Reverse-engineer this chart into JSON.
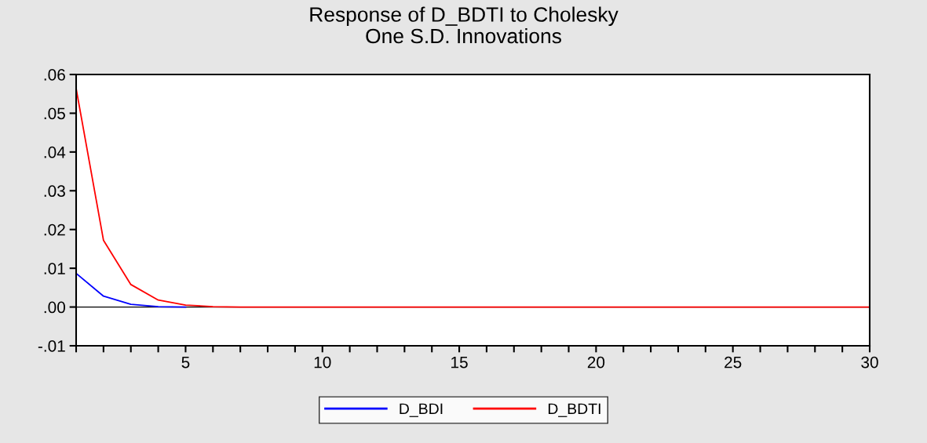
{
  "chart_data": {
    "type": "line",
    "title": "Response of D_BDTI to Cholesky\nOne S.D. Innovations",
    "x": [
      1,
      2,
      3,
      4,
      5,
      6,
      7,
      8,
      9,
      10,
      11,
      12,
      13,
      14,
      15,
      16,
      17,
      18,
      19,
      20,
      21,
      22,
      23,
      24,
      25,
      26,
      27,
      28,
      29,
      30
    ],
    "series": [
      {
        "name": "D_BDI",
        "color": "#0000ff",
        "values": [
          0.0087,
          0.0028,
          0.0007,
          0.0001,
          0,
          null,
          null,
          null,
          null,
          null,
          null,
          null,
          null,
          null,
          null,
          null,
          null,
          null,
          null,
          null,
          null,
          null,
          null,
          null,
          null,
          null,
          null,
          null,
          null,
          null
        ]
      },
      {
        "name": "D_BDTI",
        "color": "#ff0000",
        "values": [
          0.0564,
          0.0172,
          0.0058,
          0.0018,
          0.0005,
          0.0001,
          0,
          0,
          0,
          0,
          0,
          0,
          0,
          0,
          0,
          0,
          0,
          0,
          0,
          0,
          0,
          0,
          0,
          0,
          0,
          0,
          0,
          0,
          0,
          0
        ]
      }
    ],
    "xlim": [
      1,
      30
    ],
    "xticks": [
      {
        "value": 1,
        "label": null
      },
      {
        "value": 2,
        "label": null
      },
      {
        "value": 3,
        "label": null
      },
      {
        "value": 4,
        "label": null
      },
      5,
      {
        "value": 6,
        "label": null
      },
      {
        "value": 7,
        "label": null
      },
      {
        "value": 8,
        "label": null
      },
      {
        "value": 9,
        "label": null
      },
      10,
      {
        "value": 11,
        "label": null
      },
      {
        "value": 12,
        "label": null
      },
      {
        "value": 13,
        "label": null
      },
      {
        "value": 14,
        "label": null
      },
      15,
      {
        "value": 16,
        "label": null
      },
      {
        "value": 17,
        "label": null
      },
      {
        "value": 18,
        "label": null
      },
      {
        "value": 19,
        "label": null
      },
      20,
      {
        "value": 21,
        "label": null
      },
      {
        "value": 22,
        "label": null
      },
      {
        "value": 23,
        "label": null
      },
      {
        "value": 24,
        "label": null
      },
      25,
      {
        "value": 26,
        "label": null
      },
      {
        "value": 27,
        "label": null
      },
      {
        "value": 28,
        "label": null
      },
      {
        "value": 29,
        "label": null
      },
      30
    ],
    "ylim": [
      -0.01,
      0.06
    ],
    "yticks": [
      {
        "value": -0.01,
        "label": "-.01"
      },
      {
        "value": 0,
        "label": ".00"
      },
      {
        "value": 0.01,
        "label": ".01"
      },
      {
        "value": 0.02,
        "label": ".02"
      },
      {
        "value": 0.03,
        "label": ".03"
      },
      {
        "value": 0.04,
        "label": ".04"
      },
      {
        "value": 0.05,
        "label": ".05"
      },
      {
        "value": 0.06,
        "label": ".06"
      }
    ],
    "ref_lines": [
      {
        "axis": "y",
        "value": 0,
        "color": "#000000"
      }
    ],
    "grid": false,
    "legend": "bottom",
    "marker": "none",
    "line_style": "solid"
  }
}
